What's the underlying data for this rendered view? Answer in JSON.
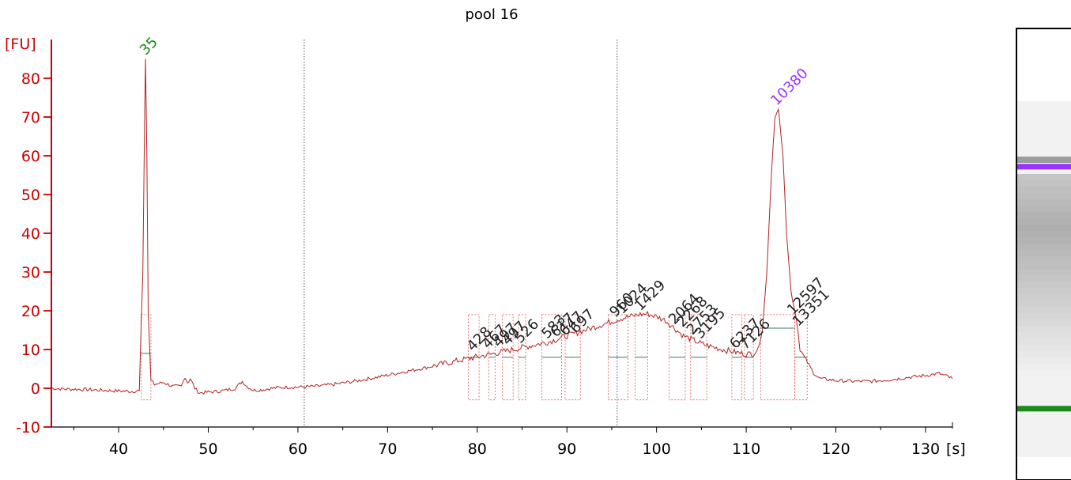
{
  "title": "pool 16",
  "chart_data": {
    "type": "line",
    "title": "pool 16",
    "y_unit_label": "[FU]",
    "x_unit_label": "[s]",
    "xlim": [
      32.5,
      133
    ],
    "ylim": [
      -10,
      90
    ],
    "x_ticks": [
      40,
      50,
      60,
      70,
      80,
      90,
      100,
      110,
      120,
      130
    ],
    "y_ticks": [
      -10,
      0,
      10,
      20,
      30,
      40,
      50,
      60,
      70,
      80
    ],
    "grid": false,
    "colors": {
      "axis": "#cc0000",
      "trace": "#b22222",
      "lower_marker": "#1a8a1a",
      "upper_marker": "#9933ff",
      "peak_label": "#222222",
      "gel_background": "#f2f2f2",
      "gel_frame": "#000000"
    },
    "marker_lines_x": [
      60.7,
      95.6
    ],
    "series": [
      {
        "values": [
          [
            32.5,
            0
          ],
          [
            34,
            -0.2
          ],
          [
            36,
            -0.3
          ],
          [
            38,
            -0.5
          ],
          [
            40,
            -0.7
          ],
          [
            41.5,
            -0.8
          ],
          [
            42.3,
            -0.6
          ],
          [
            42.7,
            30
          ],
          [
            42.9,
            70
          ],
          [
            43.0,
            85
          ],
          [
            43.15,
            60
          ],
          [
            43.3,
            20
          ],
          [
            43.6,
            2
          ],
          [
            44,
            1
          ],
          [
            45,
            1.5
          ],
          [
            46,
            0.5
          ],
          [
            47,
            0.5
          ],
          [
            47.4,
            3
          ],
          [
            47.7,
            1.5
          ],
          [
            48,
            2.5
          ],
          [
            48.5,
            0
          ],
          [
            49,
            -1.2
          ],
          [
            50,
            -1
          ],
          [
            51,
            -0.8
          ],
          [
            52,
            -0.5
          ],
          [
            53,
            0
          ],
          [
            53.8,
            1.8
          ],
          [
            54.3,
            0.5
          ],
          [
            55,
            -0.5
          ],
          [
            56,
            -0.4
          ],
          [
            57,
            0
          ],
          [
            58,
            0.2
          ],
          [
            59,
            0.3
          ],
          [
            60,
            0.3
          ],
          [
            62,
            0.5
          ],
          [
            64,
            1
          ],
          [
            66,
            1.7
          ],
          [
            68,
            2.5
          ],
          [
            70,
            3.4
          ],
          [
            72,
            4.3
          ],
          [
            74,
            5.2
          ],
          [
            76,
            6.2
          ],
          [
            78,
            7.2
          ],
          [
            80,
            8.1
          ],
          [
            82,
            9
          ],
          [
            84,
            10
          ],
          [
            86,
            11
          ],
          [
            88,
            12
          ],
          [
            90,
            13.5
          ],
          [
            92,
            15
          ],
          [
            94,
            16.5
          ],
          [
            96,
            18
          ],
          [
            98,
            19
          ],
          [
            99,
            19.2
          ],
          [
            100,
            18.5
          ],
          [
            101,
            17.5
          ],
          [
            102,
            15.5
          ],
          [
            103,
            13.5
          ],
          [
            104,
            12.5
          ],
          [
            105,
            11.5
          ],
          [
            106,
            10.8
          ],
          [
            107,
            10.2
          ],
          [
            108,
            9.7
          ],
          [
            109,
            9.2
          ],
          [
            110,
            8.8
          ],
          [
            110.8,
            9
          ],
          [
            111.3,
            10
          ],
          [
            111.8,
            15
          ],
          [
            112.3,
            30
          ],
          [
            112.8,
            55
          ],
          [
            113.2,
            70
          ],
          [
            113.6,
            72
          ],
          [
            114.1,
            60
          ],
          [
            114.5,
            40
          ],
          [
            115,
            25
          ],
          [
            115.6,
            18
          ],
          [
            116,
            10
          ],
          [
            116.5,
            8
          ],
          [
            117,
            6
          ],
          [
            117.5,
            4
          ],
          [
            118.2,
            2.5
          ],
          [
            119,
            2.3
          ],
          [
            120,
            2
          ],
          [
            122,
            1.8
          ],
          [
            124,
            1.8
          ],
          [
            126,
            2.2
          ],
          [
            128,
            2.8
          ],
          [
            130,
            3.3
          ],
          [
            131.5,
            3.8
          ],
          [
            132.5,
            3
          ],
          [
            133,
            2.5
          ]
        ]
      }
    ],
    "peaks": [
      {
        "x": 43.0,
        "y": 85,
        "label": "35",
        "color": "#1a8a1a"
      },
      {
        "x": 113.4,
        "y": 72,
        "label": "10380",
        "color": "#9933ff"
      },
      {
        "x": 79.5,
        "y": 8.6,
        "label": "428",
        "color": "#222222"
      },
      {
        "x": 81.2,
        "y": 9.2,
        "label": "467",
        "color": "#222222"
      },
      {
        "x": 82.4,
        "y": 9.6,
        "label": "497",
        "color": "#222222"
      },
      {
        "x": 83.4,
        "y": 10.1,
        "label": "497",
        "color": "#222222"
      },
      {
        "x": 84.8,
        "y": 10.6,
        "label": "526",
        "color": "#222222"
      },
      {
        "x": 87.8,
        "y": 11.8,
        "label": "583",
        "color": "#222222"
      },
      {
        "x": 88.8,
        "y": 12.2,
        "label": "617",
        "color": "#222222"
      },
      {
        "x": 89.8,
        "y": 12.6,
        "label": "647",
        "color": "#222222"
      },
      {
        "x": 91.0,
        "y": 13.2,
        "label": "697",
        "color": "#222222"
      },
      {
        "x": 95.4,
        "y": 17.4,
        "label": "960",
        "color": "#222222"
      },
      {
        "x": 96.2,
        "y": 18.2,
        "label": "1024",
        "color": "#222222"
      },
      {
        "x": 98.2,
        "y": 19.0,
        "label": "1429",
        "color": "#222222"
      },
      {
        "x": 102.0,
        "y": 15.5,
        "label": "2064",
        "color": "#222222"
      },
      {
        "x": 102.9,
        "y": 14.8,
        "label": "2268",
        "color": "#222222"
      },
      {
        "x": 104.0,
        "y": 12.8,
        "label": "2753",
        "color": "#222222"
      },
      {
        "x": 104.9,
        "y": 11.8,
        "label": "3195",
        "color": "#222222"
      },
      {
        "x": 108.8,
        "y": 9.2,
        "label": "6237",
        "color": "#222222"
      },
      {
        "x": 109.9,
        "y": 9.0,
        "label": "7126",
        "color": "#222222"
      },
      {
        "x": 115.2,
        "y": 18.0,
        "label": "12597",
        "color": "#222222"
      },
      {
        "x": 115.8,
        "y": 15.0,
        "label": "13351",
        "color": "#222222"
      }
    ],
    "peak_regions": [
      {
        "x0": 42.5,
        "x1": 43.6,
        "y": 9
      },
      {
        "x0": 79.0,
        "x1": 80.2,
        "y": 8
      },
      {
        "x0": 81.3,
        "x1": 82.0,
        "y": 8
      },
      {
        "x0": 82.8,
        "x1": 84.0,
        "y": 8
      },
      {
        "x0": 84.6,
        "x1": 85.4,
        "y": 8
      },
      {
        "x0": 87.2,
        "x1": 89.4,
        "y": 8
      },
      {
        "x0": 89.8,
        "x1": 91.5,
        "y": 8
      },
      {
        "x0": 94.6,
        "x1": 96.8,
        "y": 8
      },
      {
        "x0": 97.6,
        "x1": 99.0,
        "y": 8
      },
      {
        "x0": 101.4,
        "x1": 103.2,
        "y": 8
      },
      {
        "x0": 103.8,
        "x1": 105.6,
        "y": 8
      },
      {
        "x0": 108.4,
        "x1": 109.5,
        "y": 8
      },
      {
        "x0": 109.8,
        "x1": 110.8,
        "y": 8
      },
      {
        "x0": 111.6,
        "x1": 115.4,
        "y": 15.5
      },
      {
        "x0": 115.4,
        "x1": 116.8,
        "y": 8
      }
    ],
    "gel_bands": [
      {
        "position": 0.306,
        "color": "#9933ff",
        "strength": 1.0
      },
      {
        "position": 0.842,
        "color": "#1a8a1a",
        "strength": 1.0
      }
    ]
  }
}
